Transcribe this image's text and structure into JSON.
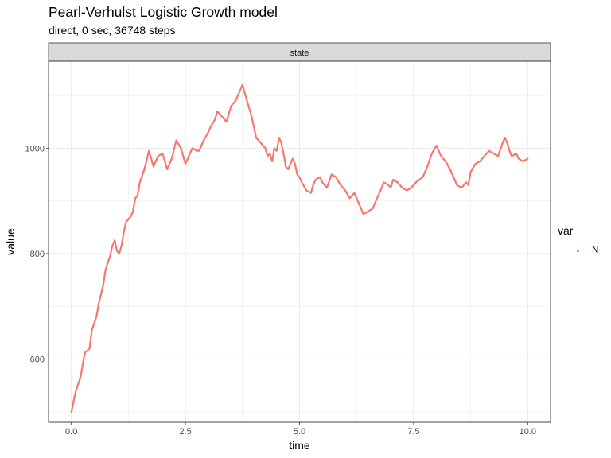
{
  "chart_data": {
    "type": "line",
    "title": "Pearl-Verhulst Logistic Growth model",
    "subtitle": "direct, 0 sec, 36748 steps",
    "facet_label": "state",
    "xlabel": "time",
    "ylabel": "value",
    "xlim": [
      -0.5,
      10.5
    ],
    "ylim": [
      480,
      1165
    ],
    "x_ticks": [
      0,
      2.5,
      5,
      7.5,
      10
    ],
    "x_tick_labels": [
      "0.0",
      "2.5",
      "5.0",
      "7.5",
      "10.0"
    ],
    "y_ticks": [
      600,
      800,
      1000
    ],
    "y_tick_labels": [
      "600",
      "800",
      "1000"
    ],
    "grid": true,
    "legend": {
      "title": "var",
      "position": "right",
      "entries": [
        "N"
      ]
    },
    "colors": {
      "N": "#F8766D",
      "panel_border": "#333333",
      "strip_fill": "#d9d9d9",
      "grid": "#ebebeb"
    },
    "series": [
      {
        "name": "N",
        "x": [
          0.0,
          0.05,
          0.1,
          0.2,
          0.25,
          0.3,
          0.4,
          0.45,
          0.55,
          0.6,
          0.7,
          0.75,
          0.85,
          0.9,
          0.95,
          1.0,
          1.05,
          1.1,
          1.15,
          1.2,
          1.3,
          1.35,
          1.4,
          1.45,
          1.5,
          1.6,
          1.7,
          1.75,
          1.8,
          1.9,
          2.0,
          2.1,
          2.2,
          2.3,
          2.4,
          2.5,
          2.55,
          2.65,
          2.75,
          2.8,
          2.9,
          3.0,
          3.05,
          3.15,
          3.2,
          3.3,
          3.4,
          3.5,
          3.6,
          3.7,
          3.75,
          3.85,
          3.95,
          4.05,
          4.15,
          4.25,
          4.3,
          4.35,
          4.4,
          4.45,
          4.5,
          4.55,
          4.6,
          4.65,
          4.7,
          4.75,
          4.85,
          4.9,
          4.95,
          5.0,
          5.05,
          5.15,
          5.25,
          5.3,
          5.35,
          5.45,
          5.5,
          5.6,
          5.7,
          5.8,
          5.9,
          6.0,
          6.1,
          6.2,
          6.3,
          6.4,
          6.5,
          6.6,
          6.7,
          6.8,
          6.85,
          6.95,
          7.0,
          7.05,
          7.15,
          7.25,
          7.35,
          7.45,
          7.55,
          7.7,
          7.8,
          7.9,
          8.0,
          8.1,
          8.2,
          8.3,
          8.35,
          8.45,
          8.55,
          8.65,
          8.7,
          8.75,
          8.85,
          8.95,
          9.05,
          9.15,
          9.25,
          9.35,
          9.45,
          9.5,
          9.55,
          9.6,
          9.65,
          9.75,
          9.8,
          9.9,
          10.0
        ],
        "values": [
          498,
          520,
          540,
          565,
          590,
          612,
          620,
          655,
          680,
          705,
          740,
          770,
          795,
          815,
          825,
          805,
          800,
          815,
          840,
          860,
          870,
          880,
          905,
          910,
          935,
          960,
          995,
          980,
          965,
          985,
          990,
          960,
          980,
          1015,
          1000,
          970,
          980,
          1000,
          995,
          995,
          1015,
          1030,
          1040,
          1055,
          1070,
          1060,
          1050,
          1080,
          1090,
          1110,
          1120,
          1090,
          1060,
          1020,
          1010,
          1000,
          985,
          990,
          975,
          1000,
          995,
          1020,
          1010,
          990,
          965,
          960,
          980,
          970,
          950,
          945,
          935,
          920,
          915,
          930,
          940,
          945,
          935,
          925,
          950,
          945,
          930,
          920,
          905,
          915,
          895,
          875,
          880,
          885,
          905,
          925,
          935,
          930,
          925,
          940,
          935,
          925,
          920,
          925,
          935,
          945,
          965,
          990,
          1005,
          985,
          975,
          960,
          950,
          930,
          925,
          935,
          930,
          955,
          970,
          975,
          985,
          995,
          990,
          985,
          1010,
          1020,
          1010,
          995,
          985,
          990,
          980,
          975,
          980
        ]
      }
    ]
  }
}
